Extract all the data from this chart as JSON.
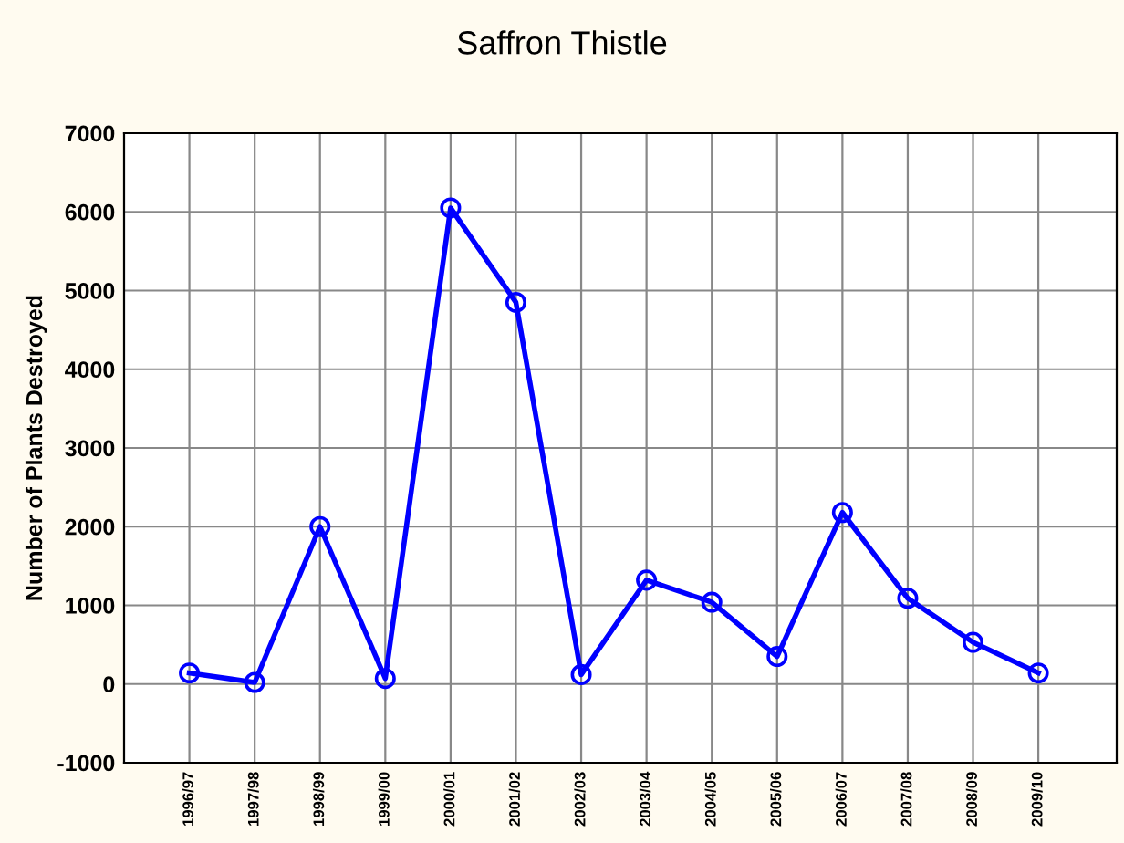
{
  "chart_data": {
    "type": "line",
    "title": "Saffron Thistle",
    "ylabel": "Number of Plants Destroyed",
    "categories": [
      "1996/97",
      "1997/98",
      "1998/99",
      "1999/00",
      "2000/01",
      "2001/02",
      "2002/03",
      "2003/04",
      "2004/05",
      "2005/06",
      "2006/07",
      "2007/08",
      "2008/09",
      "2009/10"
    ],
    "series": [
      {
        "color": "#0000ff",
        "values": [
          140,
          20,
          2000,
          70,
          6050,
          4850,
          120,
          1320,
          1040,
          350,
          2180,
          1090,
          530,
          140
        ]
      }
    ],
    "ylim": [
      -1000,
      7000
    ],
    "yticks": [
      -1000,
      0,
      1000,
      2000,
      3000,
      4000,
      5000,
      6000,
      7000
    ],
    "grid": true,
    "marker": "circle",
    "line_style": "solid"
  }
}
